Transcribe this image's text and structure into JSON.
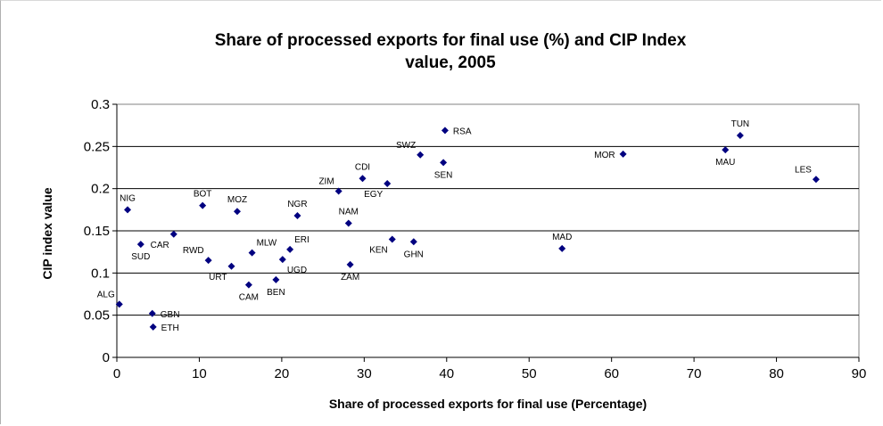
{
  "chart_data": {
    "type": "scatter",
    "title": [
      "Share of processed exports for final use (%) and CIP Index",
      "value, 2005"
    ],
    "xlabel": "Share of processed exports for final use (Percentage)",
    "ylabel": "CIP index value",
    "xlim": [
      0,
      90
    ],
    "ylim": [
      0,
      0.3
    ],
    "xticks": [
      "0",
      "10",
      "20",
      "30",
      "40",
      "50",
      "60",
      "70",
      "80",
      "90"
    ],
    "yticks": [
      "0",
      "0.05",
      "0.1",
      "0.15",
      "0.2",
      "0.25",
      "0.3"
    ],
    "grid": "horizontal",
    "marker_color": "#000080",
    "points": [
      {
        "label": "ALG",
        "x": 0.3,
        "y": 0.063,
        "pos": "upper-left"
      },
      {
        "label": "NIG",
        "x": 1.3,
        "y": 0.175,
        "pos": "above"
      },
      {
        "label": "SUD",
        "x": 2.9,
        "y": 0.134,
        "pos": "below"
      },
      {
        "label": "GBN",
        "x": 4.3,
        "y": 0.052,
        "pos": "right"
      },
      {
        "label": "ETH",
        "x": 4.4,
        "y": 0.036,
        "pos": "right"
      },
      {
        "label": "CAR",
        "x": 6.9,
        "y": 0.146,
        "pos": "lower-left"
      },
      {
        "label": "BOT",
        "x": 10.4,
        "y": 0.18,
        "pos": "above"
      },
      {
        "label": "RWD",
        "x": 11.1,
        "y": 0.115,
        "pos": "upper-left"
      },
      {
        "label": "URT",
        "x": 13.9,
        "y": 0.108,
        "pos": "lower-left"
      },
      {
        "label": "MOZ",
        "x": 14.6,
        "y": 0.173,
        "pos": "above"
      },
      {
        "label": "CAM",
        "x": 16.0,
        "y": 0.086,
        "pos": "below"
      },
      {
        "label": "MLW",
        "x": 16.4,
        "y": 0.124,
        "pos": "upper-right"
      },
      {
        "label": "BEN",
        "x": 19.3,
        "y": 0.092,
        "pos": "below"
      },
      {
        "label": "UGD",
        "x": 20.1,
        "y": 0.116,
        "pos": "lower-right"
      },
      {
        "label": "ERI",
        "x": 21.0,
        "y": 0.128,
        "pos": "upper-right"
      },
      {
        "label": "NGR",
        "x": 21.9,
        "y": 0.168,
        "pos": "above"
      },
      {
        "label": "ZIM",
        "x": 26.9,
        "y": 0.197,
        "pos": "upper-left"
      },
      {
        "label": "NAM",
        "x": 28.1,
        "y": 0.159,
        "pos": "above"
      },
      {
        "label": "ZAM",
        "x": 28.3,
        "y": 0.11,
        "pos": "below"
      },
      {
        "label": "CDI",
        "x": 29.8,
        "y": 0.212,
        "pos": "above"
      },
      {
        "label": "EGY",
        "x": 32.8,
        "y": 0.206,
        "pos": "lower-left"
      },
      {
        "label": "KEN",
        "x": 33.4,
        "y": 0.14,
        "pos": "lower-left"
      },
      {
        "label": "GHN",
        "x": 36.0,
        "y": 0.137,
        "pos": "below"
      },
      {
        "label": "SWZ",
        "x": 36.8,
        "y": 0.24,
        "pos": "upper-left"
      },
      {
        "label": "SEN",
        "x": 39.6,
        "y": 0.231,
        "pos": "below"
      },
      {
        "label": "RSA",
        "x": 39.8,
        "y": 0.269,
        "pos": "right"
      },
      {
        "label": "MAD",
        "x": 54.0,
        "y": 0.129,
        "pos": "above"
      },
      {
        "label": "MOR",
        "x": 61.4,
        "y": 0.241,
        "pos": "left"
      },
      {
        "label": "MAU",
        "x": 73.8,
        "y": 0.246,
        "pos": "below"
      },
      {
        "label": "TUN",
        "x": 75.6,
        "y": 0.263,
        "pos": "above"
      },
      {
        "label": "LES",
        "x": 84.8,
        "y": 0.211,
        "pos": "upper-left"
      }
    ]
  }
}
